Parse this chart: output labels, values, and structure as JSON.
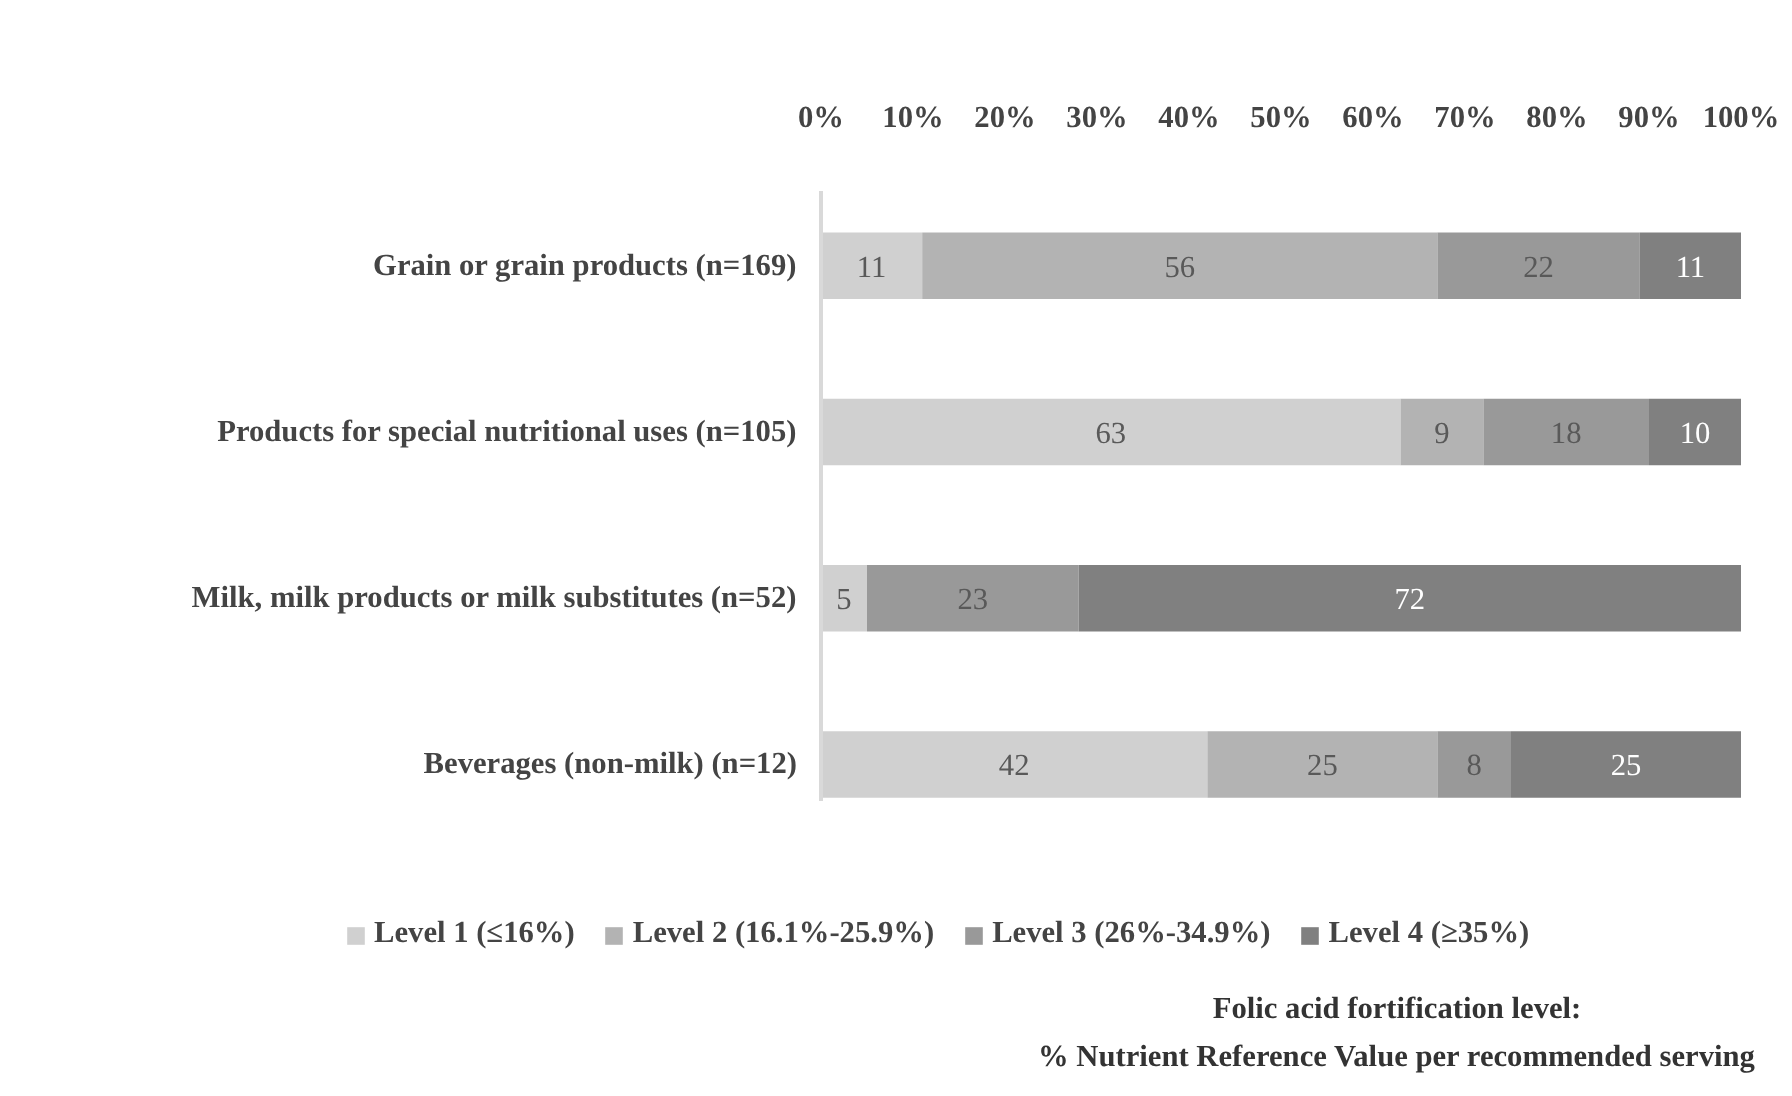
{
  "chart_data": {
    "type": "bar",
    "orientation": "horizontal",
    "stacked": true,
    "categories": [
      "Grain or grain products (n=169)",
      "Products for special nutritional uses (n=105)",
      "Milk, milk products or milk substitutes (n=52)",
      "Beverages (non-milk) (n=12)"
    ],
    "series": [
      {
        "name": "Level 1 (≤16%)",
        "color": "#d0d0d0",
        "values": [
          11,
          63,
          5,
          42
        ]
      },
      {
        "name": "Level 2 (16.1%-25.9%)",
        "color": "#b3b3b3",
        "values": [
          56,
          9,
          null,
          25
        ]
      },
      {
        "name": "Level 3 (26%-34.9%)",
        "color": "#999999",
        "values": [
          22,
          18,
          23,
          8
        ]
      },
      {
        "name": "Level 4 (≥35%)",
        "color": "#808080",
        "values": [
          11,
          10,
          72,
          25
        ]
      }
    ],
    "xlim": [
      0,
      100
    ],
    "xticks": [
      {
        "value": 0,
        "label": "0%"
      },
      {
        "value": 10,
        "label": "10%"
      },
      {
        "value": 20,
        "label": "20%"
      },
      {
        "value": 30,
        "label": "30%"
      },
      {
        "value": 40,
        "label": "40%"
      },
      {
        "value": 50,
        "label": "50%"
      },
      {
        "value": 60,
        "label": "60%"
      },
      {
        "value": 70,
        "label": "70%"
      },
      {
        "value": 80,
        "label": "80%"
      },
      {
        "value": 90,
        "label": "90%"
      },
      {
        "value": 100,
        "label": "100%"
      }
    ],
    "annotations": [
      "Folic acid fortification level:\n% Nutrient Reference Value per recommended serving"
    ],
    "data_labels": true,
    "grid": false,
    "legend": "bottom"
  }
}
